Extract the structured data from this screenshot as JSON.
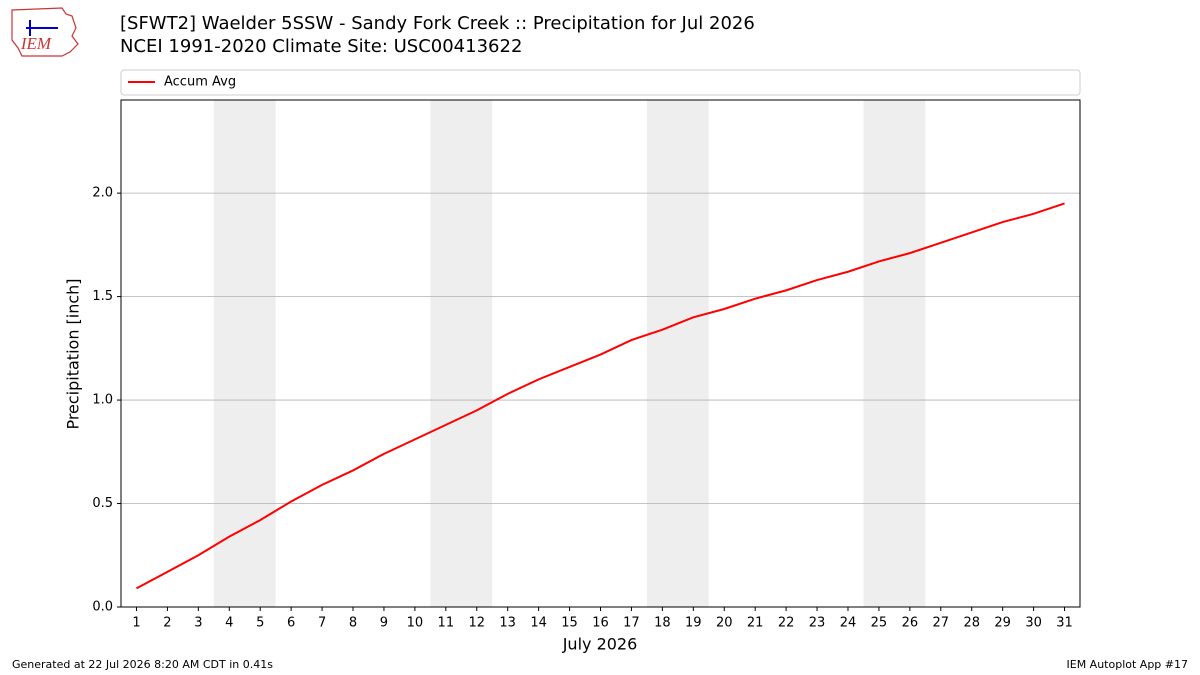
{
  "chart_data": {
    "type": "line",
    "title": "[SFWT2] Waelder 5SSW - Sandy Fork Creek :: Precipitation for Jul 2026",
    "subtitle": "NCEI 1991-2020 Climate Site: USC00413622",
    "x_label": "July 2026",
    "y_label": "Precipitation [inch]",
    "x": [
      1,
      2,
      3,
      4,
      5,
      6,
      7,
      8,
      9,
      10,
      11,
      12,
      13,
      14,
      15,
      16,
      17,
      18,
      19,
      20,
      21,
      22,
      23,
      24,
      25,
      26,
      27,
      28,
      29,
      30,
      31
    ],
    "series": [
      {
        "name": "Accum Avg",
        "color": "#ff0000",
        "values": [
          0.09,
          0.17,
          0.25,
          0.34,
          0.42,
          0.51,
          0.59,
          0.66,
          0.74,
          0.81,
          0.88,
          0.95,
          1.03,
          1.1,
          1.16,
          1.22,
          1.29,
          1.34,
          1.4,
          1.44,
          1.49,
          1.53,
          1.58,
          1.62,
          1.67,
          1.71,
          1.76,
          1.81,
          1.86,
          1.9,
          1.95
        ]
      }
    ],
    "xlim": [
      0.5,
      31.5
    ],
    "ylim": [
      0,
      2.45
    ],
    "xticks": [
      1,
      2,
      3,
      4,
      5,
      6,
      7,
      8,
      9,
      10,
      11,
      12,
      13,
      14,
      15,
      16,
      17,
      18,
      19,
      20,
      21,
      22,
      23,
      24,
      25,
      26,
      27,
      28,
      29,
      30,
      31
    ],
    "yticks": [
      {
        "value": 0,
        "label": "0.0"
      },
      0.5,
      {
        "value": 1,
        "label": "1.0"
      },
      1.5,
      {
        "value": 2,
        "label": "2.0"
      }
    ],
    "shaded_ranges": [
      [
        3.5,
        5.5
      ],
      [
        10.5,
        12.5
      ],
      [
        17.5,
        19.5
      ],
      [
        24.5,
        26.5
      ]
    ],
    "shade_color": "#eeeeee",
    "grid": true,
    "legend": "top"
  },
  "footer": {
    "left": "Generated at 22 Jul 2026 8:20 AM CDT in 0.41s",
    "right": "IEM Autoplot App #17"
  },
  "logo": "IEM"
}
